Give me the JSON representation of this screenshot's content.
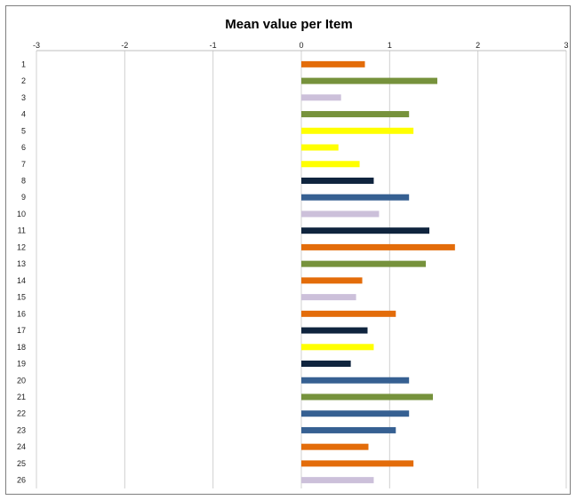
{
  "chart_data": {
    "type": "bar",
    "orientation": "horizontal",
    "title": "Mean value per Item",
    "xlabel": "",
    "ylabel": "",
    "xlim": [
      -3,
      3
    ],
    "x_ticks": [
      "-3",
      "-2",
      "-1",
      "0",
      "1",
      "2",
      "3"
    ],
    "x_axis_position": "top",
    "grid": true,
    "legend": "none",
    "categories": [
      "1",
      "2",
      "3",
      "4",
      "5",
      "6",
      "7",
      "8",
      "9",
      "10",
      "11",
      "12",
      "13",
      "14",
      "15",
      "16",
      "17",
      "18",
      "19",
      "20",
      "21",
      "22",
      "23",
      "24",
      "25",
      "26"
    ],
    "values": [
      0.72,
      1.54,
      0.45,
      1.22,
      1.27,
      0.42,
      0.66,
      0.82,
      1.22,
      0.88,
      1.45,
      1.74,
      1.41,
      0.69,
      0.62,
      1.07,
      0.75,
      0.82,
      0.56,
      1.22,
      1.49,
      1.22,
      1.07,
      0.76,
      1.27,
      0.82
    ],
    "colors": [
      "#e36c0a",
      "#76923c",
      "#ccc0da",
      "#76923c",
      "#ffff00",
      "#ffff00",
      "#ffff00",
      "#0f243e",
      "#366092",
      "#ccc0da",
      "#0f243e",
      "#e36c0a",
      "#76923c",
      "#e36c0a",
      "#ccc0da",
      "#e36c0a",
      "#0f243e",
      "#ffff00",
      "#0f243e",
      "#366092",
      "#76923c",
      "#366092",
      "#366092",
      "#e36c0a",
      "#e36c0a",
      "#ccc0da"
    ]
  }
}
